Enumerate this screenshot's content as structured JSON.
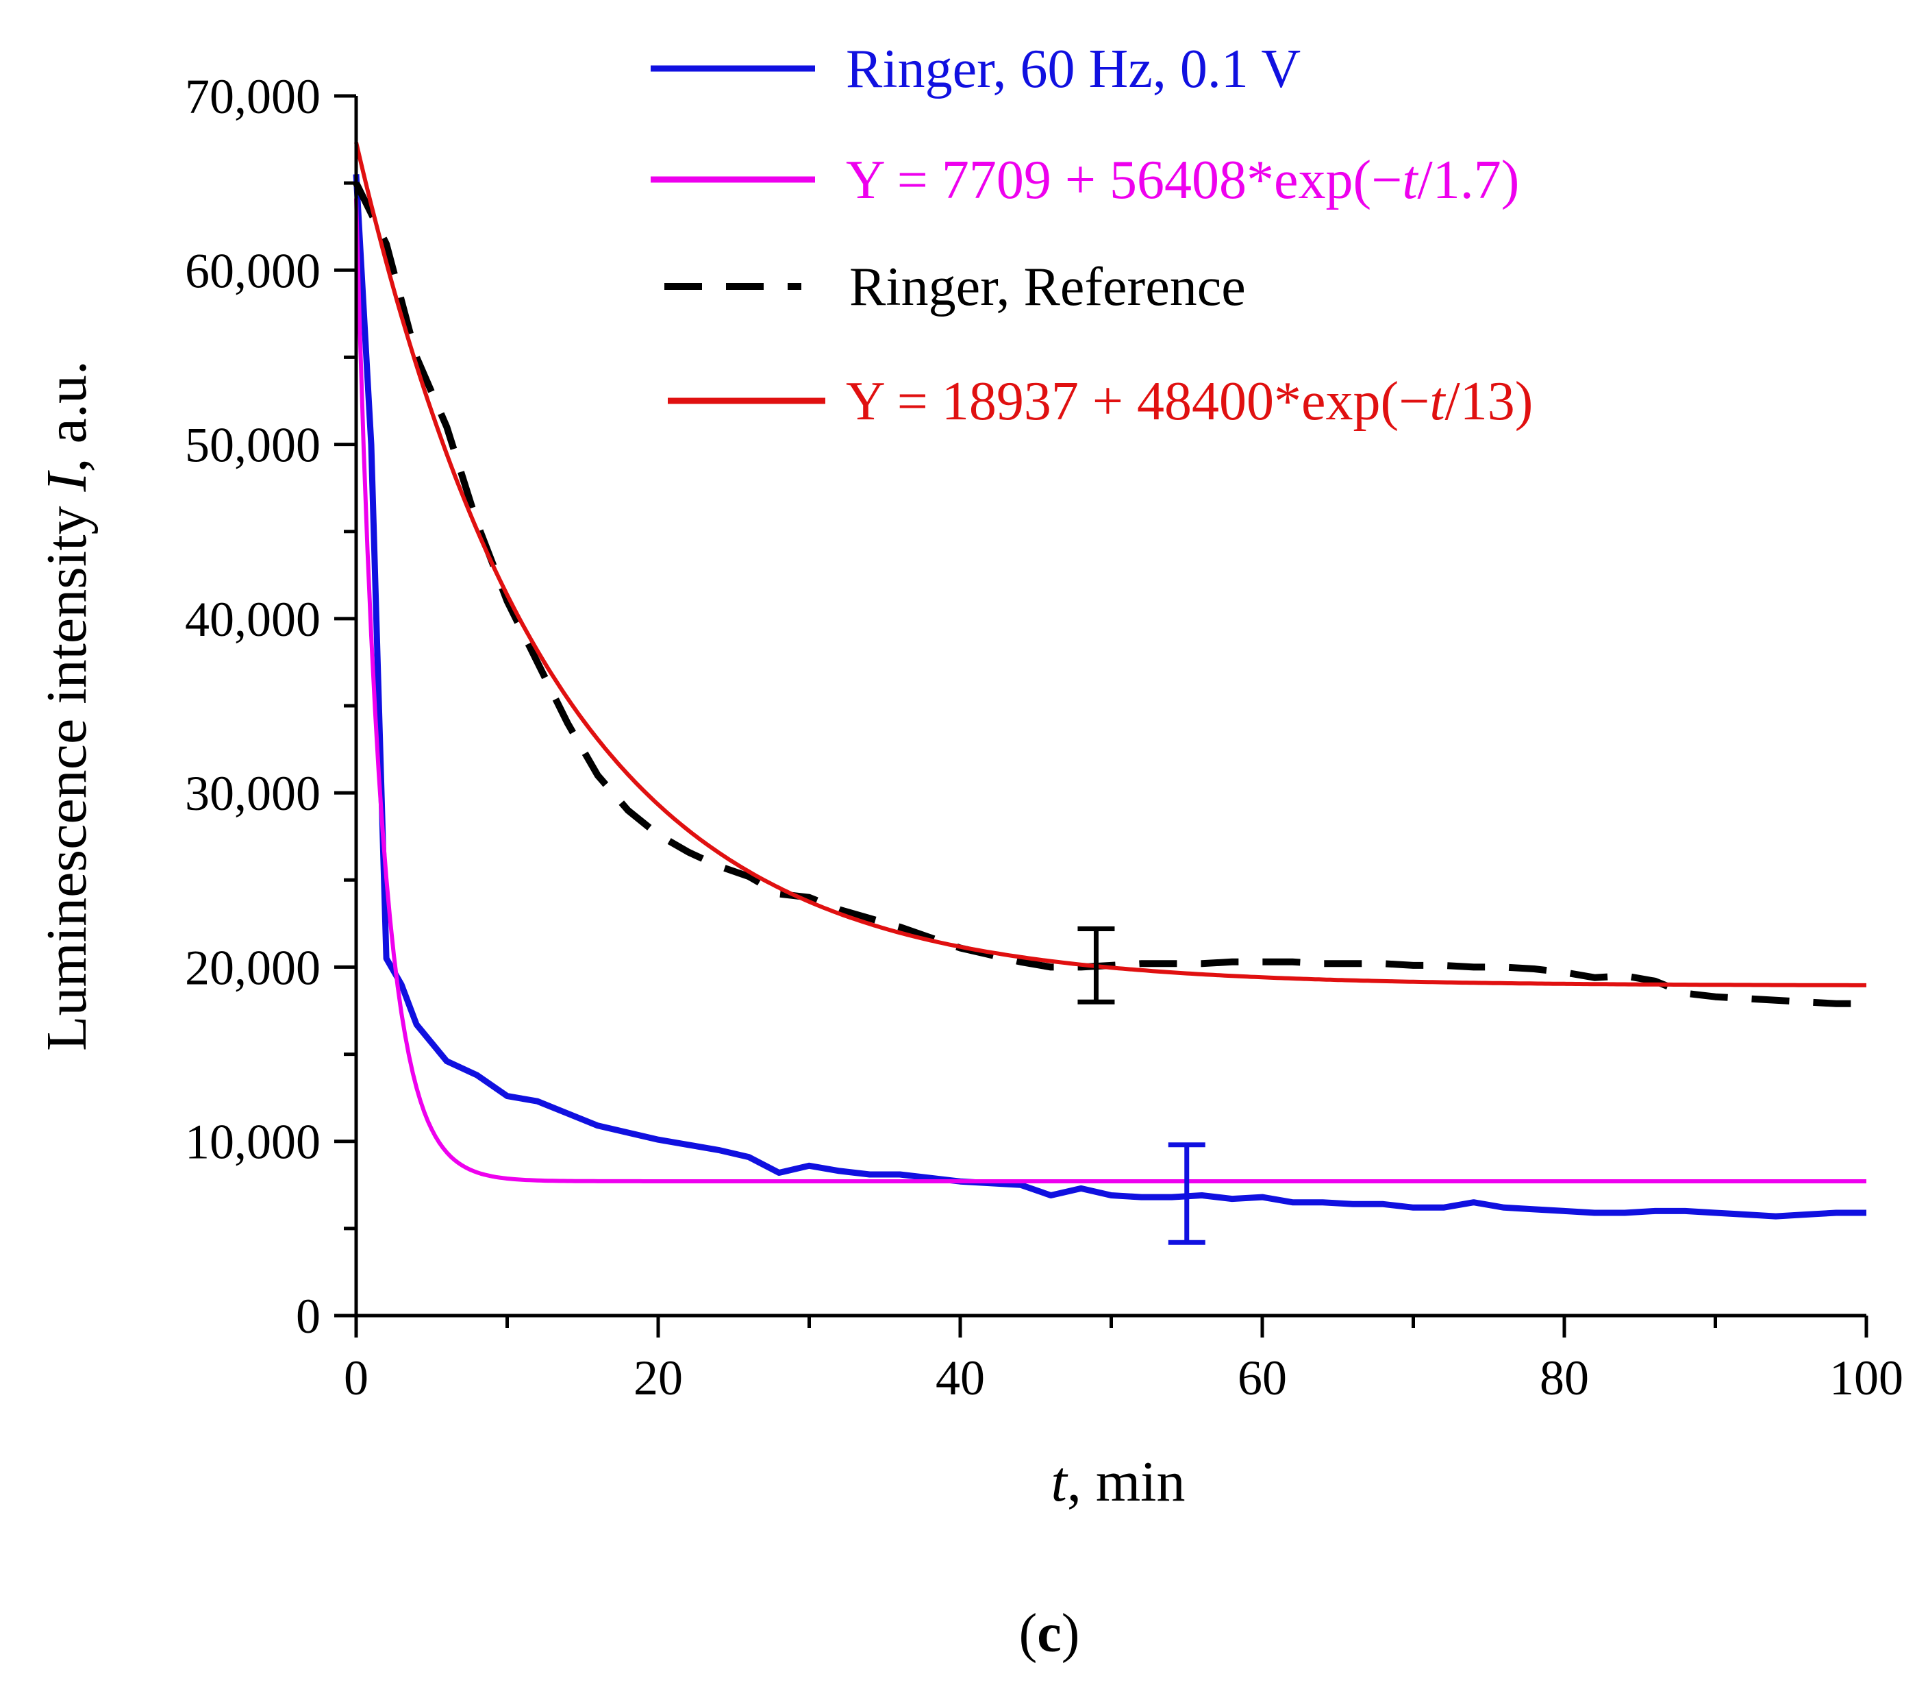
{
  "chart_data": {
    "type": "line",
    "xlabel": {
      "var": "t",
      "rest": ", min"
    },
    "ylabel": {
      "text": "Luminescence intensity ",
      "var": "I",
      "rest": ", a.u."
    },
    "xlim": [
      0,
      100
    ],
    "ylim": [
      0,
      70000
    ],
    "x_major_ticks": [
      0,
      20,
      40,
      60,
      80,
      100
    ],
    "x_tick_labels": [
      "0",
      "20",
      "40",
      "60",
      "80",
      "100"
    ],
    "y_major_ticks": [
      0,
      10000,
      20000,
      30000,
      40000,
      50000,
      60000,
      70000
    ],
    "y_tick_labels": [
      "0",
      "10,000",
      "20,000",
      "30,000",
      "40,000",
      "50,000",
      "60,000",
      "70,000"
    ],
    "caption": {
      "open": "(",
      "letter": "c",
      "close": ")"
    },
    "legend": [
      {
        "label": "Ringer, 60 Hz, 0.1 V",
        "color": "#1010e0",
        "style": "solid"
      },
      {
        "label_pre": "Y = 7709 + 56408*exp(−",
        "label_var": "t",
        "label_post": "/1.7)",
        "color": "#ee00ee",
        "style": "solid"
      },
      {
        "label": "Ringer, Reference",
        "color": "#000000",
        "style": "dashed"
      },
      {
        "label_pre": " Y = 18937 + 48400*exp(−",
        "label_var": "t",
        "label_post": "/13)",
        "color": "#e01010",
        "style": "solid"
      }
    ],
    "series": [
      {
        "name": "Ringer, 60 Hz, 0.1 V",
        "color": "#1010e0",
        "style": "solid",
        "x": [
          0,
          1,
          2,
          3,
          4,
          6,
          8,
          10,
          12,
          14,
          16,
          18,
          20,
          22,
          24,
          26,
          28,
          30,
          32,
          34,
          36,
          38,
          40,
          42,
          44,
          46,
          48,
          50,
          52,
          54,
          56,
          58,
          60,
          62,
          64,
          66,
          68,
          70,
          72,
          74,
          76,
          78,
          80,
          82,
          84,
          86,
          88,
          90,
          92,
          94,
          96,
          98,
          100
        ],
        "values": [
          65500,
          50000,
          20500,
          19000,
          16700,
          14600,
          13800,
          12600,
          12300,
          11600,
          10900,
          10500,
          10100,
          9800,
          9500,
          9100,
          8200,
          8600,
          8300,
          8100,
          8100,
          7900,
          7700,
          7600,
          7500,
          6900,
          7300,
          6900,
          6800,
          6800,
          6900,
          6700,
          6800,
          6500,
          6500,
          6400,
          6400,
          6200,
          6200,
          6500,
          6200,
          6100,
          6000,
          5900,
          5900,
          6000,
          6000,
          5900,
          5800,
          5700,
          5800,
          5900,
          5900
        ]
      },
      {
        "name": "Y = 7709 + 56408*exp(−t/1.7)",
        "color": "#ee00ee",
        "style": "solid",
        "function": {
          "y0": 7709,
          "A": 56408,
          "tau": 1.7
        }
      },
      {
        "name": "Ringer, Reference",
        "color": "#000000",
        "style": "dashed",
        "x": [
          0,
          2,
          4,
          6,
          8,
          10,
          12,
          14,
          16,
          18,
          20,
          22,
          24,
          26,
          28,
          30,
          32,
          34,
          36,
          38,
          40,
          42,
          44,
          46,
          48,
          50,
          52,
          54,
          56,
          58,
          60,
          62,
          64,
          66,
          68,
          70,
          72,
          74,
          76,
          78,
          80,
          82,
          84,
          86,
          88,
          90,
          92,
          94,
          96,
          98,
          100
        ],
        "values": [
          65000,
          61500,
          55000,
          51000,
          45500,
          41000,
          37500,
          34000,
          31000,
          29000,
          27600,
          26600,
          25800,
          25200,
          24200,
          24000,
          23300,
          22800,
          22300,
          21700,
          21100,
          20700,
          20300,
          20000,
          20000,
          20100,
          20200,
          20200,
          20200,
          20300,
          20300,
          20300,
          20200,
          20200,
          20200,
          20100,
          20100,
          20000,
          20000,
          19900,
          19700,
          19400,
          19500,
          19200,
          18500,
          18300,
          18200,
          18100,
          18000,
          17900,
          17900
        ]
      },
      {
        "name": "Y = 18937 + 48400*exp(−t/13)",
        "color": "#e01010",
        "style": "solid",
        "function": {
          "y0": 18937,
          "A": 48400,
          "tau": 13
        }
      }
    ],
    "error_bars": [
      {
        "series": "Ringer, Reference",
        "color": "#000000",
        "x": 49,
        "y": 20100,
        "low": 18000,
        "high": 22200
      },
      {
        "series": "Ringer, 60 Hz, 0.1 V",
        "color": "#1010e0",
        "x": 55,
        "y": 7000,
        "low": 4200,
        "high": 9800
      }
    ]
  }
}
